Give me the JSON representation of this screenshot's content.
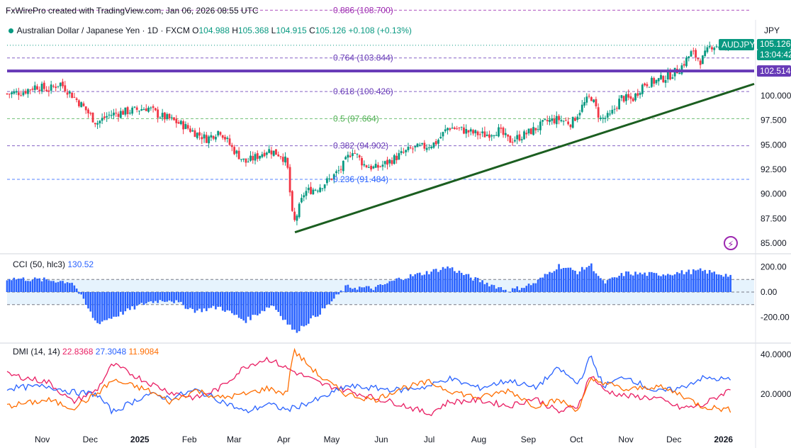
{
  "watermark": "FxWirePro created with TradingView.com, Jan 06, 2026 08:55 UTC",
  "header": {
    "symbol_name": "Australian Dollar / Japanese Yen",
    "interval": "1D",
    "exchange": "FXCM",
    "open_label": "O",
    "open": "104.988",
    "high_label": "H",
    "high": "105.368",
    "low_label": "L",
    "low": "104.915",
    "close_label": "C",
    "close": "105.126",
    "change": "+0.108",
    "change_pct": "(+0.13%)"
  },
  "currency": "JPY",
  "price_axis": {
    "ticks": [
      "100.000",
      "97.500",
      "95.000",
      "92.500",
      "90.000",
      "87.500",
      "85.000"
    ],
    "tick_values": [
      100,
      97.5,
      95,
      92.5,
      90,
      87.5,
      85
    ],
    "symbol_tag": "AUDJPY",
    "price_tag": "105.126",
    "countdown_tag": "13:04:42",
    "level_tag": "102.514",
    "level_value": 102.514,
    "colors": {
      "up": "#089981",
      "down": "#f23645",
      "level": "#673ab7"
    }
  },
  "fib_levels": [
    {
      "label": "0.886 (108.700)",
      "value": 108.7,
      "color": "#9c27b0"
    },
    {
      "label": "0.764 (103.844)",
      "value": 103.844,
      "color": "#673ab7"
    },
    {
      "label": "0.618 (100.426)",
      "value": 100.426,
      "color": "#673ab7"
    },
    {
      "label": "0.5 (97.664)",
      "value": 97.664,
      "color": "#4caf50"
    },
    {
      "label": "0.382 (94.902)",
      "value": 94.902,
      "color": "#673ab7"
    },
    {
      "label": "0.236 (91.484)",
      "value": 91.484,
      "color": "#2962ff"
    }
  ],
  "time_axis": [
    "Nov",
    "Dec",
    "2025",
    "Feb",
    "Mar",
    "Apr",
    "May",
    "Jun",
    "Jul",
    "Aug",
    "Sep",
    "Oct",
    "Nov",
    "Dec",
    "2026"
  ],
  "cci": {
    "title": "CCI (50, hlc3)",
    "value": "130.52",
    "ticks": [
      "200.00",
      "0.00",
      "-200.00"
    ],
    "tick_values": [
      200,
      0,
      -200
    ],
    "band": [
      100,
      -100
    ],
    "color": "#2962ff"
  },
  "dmi": {
    "title": "DMI (14, 14)",
    "plus_di": "22.8368",
    "minus_di": "27.3048",
    "adx": "11.9084",
    "ticks": [
      "40.0000",
      "20.0000"
    ],
    "tick_values": [
      40,
      20
    ],
    "colors": {
      "plus_di": "#e91e63",
      "minus_di": "#2962ff",
      "adx": "#ff6d00"
    }
  },
  "chart_data": {
    "type": "candlestick",
    "price_range": [
      84,
      109
    ],
    "trendline": {
      "from": [
        "Apr",
        86.1
      ],
      "to": [
        "2026",
        101.2
      ],
      "color": "#1b5e20"
    },
    "price_path": [
      [
        "2024-10-10",
        100.2
      ],
      [
        "2024-10-20",
        100.4
      ],
      [
        "2024-10-28",
        101.0
      ],
      [
        "2024-11-05",
        100.6
      ],
      [
        "2024-11-12",
        101.3
      ],
      [
        "2024-11-20",
        100.0
      ],
      [
        "2024-11-27",
        98.8
      ],
      [
        "2024-12-05",
        97.2
      ],
      [
        "2024-12-12",
        98.0
      ],
      [
        "2024-12-20",
        98.3
      ],
      [
        "2024-12-28",
        98.5
      ],
      [
        "2025-01-06",
        98.8
      ],
      [
        "2025-01-13",
        98.0
      ],
      [
        "2025-01-20",
        97.6
      ],
      [
        "2025-01-28",
        97.0
      ],
      [
        "2025-02-05",
        96.2
      ],
      [
        "2025-02-12",
        95.6
      ],
      [
        "2025-02-20",
        96.5
      ],
      [
        "2025-02-28",
        94.6
      ],
      [
        "2025-03-08",
        93.2
      ],
      [
        "2025-03-15",
        93.8
      ],
      [
        "2025-03-22",
        94.5
      ],
      [
        "2025-03-30",
        94.0
      ],
      [
        "2025-04-03",
        93.2
      ],
      [
        "2025-04-07",
        86.8
      ],
      [
        "2025-04-14",
        90.2
      ],
      [
        "2025-04-22",
        90.6
      ],
      [
        "2025-04-30",
        91.5
      ],
      [
        "2025-05-07",
        92.6
      ],
      [
        "2025-05-14",
        94.5
      ],
      [
        "2025-05-21",
        93.0
      ],
      [
        "2025-05-28",
        92.6
      ],
      [
        "2025-06-05",
        93.2
      ],
      [
        "2025-06-13",
        94.0
      ],
      [
        "2025-06-20",
        94.6
      ],
      [
        "2025-06-28",
        94.8
      ],
      [
        "2025-07-05",
        95.2
      ],
      [
        "2025-07-13",
        96.8
      ],
      [
        "2025-07-20",
        96.6
      ],
      [
        "2025-07-28",
        96.2
      ],
      [
        "2025-08-05",
        96.0
      ],
      [
        "2025-08-13",
        96.5
      ],
      [
        "2025-08-20",
        95.4
      ],
      [
        "2025-08-28",
        95.9
      ],
      [
        "2025-09-05",
        96.6
      ],
      [
        "2025-09-13",
        97.4
      ],
      [
        "2025-09-20",
        97.6
      ],
      [
        "2025-09-28",
        97.2
      ],
      [
        "2025-10-05",
        99.0
      ],
      [
        "2025-10-10",
        100.0
      ],
      [
        "2025-10-16",
        97.6
      ],
      [
        "2025-10-22",
        97.9
      ],
      [
        "2025-10-29",
        99.8
      ],
      [
        "2025-11-05",
        99.6
      ],
      [
        "2025-11-12",
        101.2
      ],
      [
        "2025-11-20",
        101.5
      ],
      [
        "2025-11-28",
        102.0
      ],
      [
        "2025-12-05",
        102.8
      ],
      [
        "2025-12-12",
        104.4
      ],
      [
        "2025-12-18",
        103.5
      ],
      [
        "2025-12-24",
        105.1
      ],
      [
        "2026-01-06",
        105.13
      ]
    ],
    "cci_path": [
      [
        "2024-10-10",
        110
      ],
      [
        "2024-11-05",
        95
      ],
      [
        "2024-11-20",
        80
      ],
      [
        "2024-12-05",
        -250
      ],
      [
        "2024-12-15",
        -200
      ],
      [
        "2025-01-06",
        -80
      ],
      [
        "2025-01-20",
        -60
      ],
      [
        "2025-02-05",
        -150
      ],
      [
        "2025-02-20",
        -120
      ],
      [
        "2025-03-08",
        -230
      ],
      [
        "2025-03-25",
        -100
      ],
      [
        "2025-04-08",
        -320
      ],
      [
        "2025-04-25",
        -150
      ],
      [
        "2025-05-10",
        40
      ],
      [
        "2025-05-28",
        30
      ],
      [
        "2025-06-13",
        110
      ],
      [
        "2025-07-01",
        160
      ],
      [
        "2025-07-13",
        200
      ],
      [
        "2025-07-28",
        110
      ],
      [
        "2025-08-20",
        10
      ],
      [
        "2025-09-05",
        70
      ],
      [
        "2025-09-20",
        210
      ],
      [
        "2025-10-02",
        160
      ],
      [
        "2025-10-10",
        220
      ],
      [
        "2025-10-18",
        70
      ],
      [
        "2025-11-01",
        150
      ],
      [
        "2025-11-20",
        140
      ],
      [
        "2025-12-05",
        155
      ],
      [
        "2025-12-18",
        170
      ],
      [
        "2026-01-06",
        130
      ]
    ],
    "dmi_series": {
      "plus_di": [
        [
          "2024-10-10",
          30
        ],
        [
          "2024-11-05",
          26
        ],
        [
          "2024-11-20",
          16
        ],
        [
          "2024-12-05",
          22
        ],
        [
          "2024-12-15",
          35
        ],
        [
          "2025-01-06",
          26
        ],
        [
          "2025-01-20",
          21
        ],
        [
          "2025-02-05",
          18
        ],
        [
          "2025-02-20",
          23
        ],
        [
          "2025-03-08",
          34
        ],
        [
          "2025-03-22",
          38
        ],
        [
          "2025-04-03",
          33
        ],
        [
          "2025-04-25",
          25
        ],
        [
          "2025-05-10",
          22
        ],
        [
          "2025-05-28",
          18
        ],
        [
          "2025-06-13",
          15
        ],
        [
          "2025-07-01",
          10
        ],
        [
          "2025-07-13",
          16
        ],
        [
          "2025-08-01",
          17
        ],
        [
          "2025-08-20",
          14
        ],
        [
          "2025-09-05",
          18
        ],
        [
          "2025-09-20",
          11
        ],
        [
          "2025-10-02",
          14
        ],
        [
          "2025-10-10",
          30
        ],
        [
          "2025-10-18",
          22
        ],
        [
          "2025-11-01",
          19
        ],
        [
          "2025-11-20",
          18
        ],
        [
          "2025-12-05",
          13
        ],
        [
          "2025-12-18",
          14
        ],
        [
          "2026-01-06",
          22.8
        ]
      ],
      "minus_di": [
        [
          "2024-10-10",
          23
        ],
        [
          "2024-11-05",
          24
        ],
        [
          "2024-11-20",
          21
        ],
        [
          "2024-12-05",
          20
        ],
        [
          "2024-12-15",
          11
        ],
        [
          "2025-01-06",
          20
        ],
        [
          "2025-01-20",
          18
        ],
        [
          "2025-02-05",
          22
        ],
        [
          "2025-02-20",
          17
        ],
        [
          "2025-03-08",
          11
        ],
        [
          "2025-03-22",
          15
        ],
        [
          "2025-04-03",
          12
        ],
        [
          "2025-04-25",
          18
        ],
        [
          "2025-05-10",
          24
        ],
        [
          "2025-05-28",
          23
        ],
        [
          "2025-06-13",
          22
        ],
        [
          "2025-07-01",
          24
        ],
        [
          "2025-07-13",
          28
        ],
        [
          "2025-08-01",
          23
        ],
        [
          "2025-08-20",
          27
        ],
        [
          "2025-09-05",
          23
        ],
        [
          "2025-09-20",
          33
        ],
        [
          "2025-10-02",
          25
        ],
        [
          "2025-10-10",
          39
        ],
        [
          "2025-10-18",
          24
        ],
        [
          "2025-11-01",
          29
        ],
        [
          "2025-11-20",
          21
        ],
        [
          "2025-12-05",
          23
        ],
        [
          "2025-12-18",
          28
        ],
        [
          "2026-01-06",
          27.3
        ]
      ],
      "adx": [
        [
          "2024-10-10",
          14
        ],
        [
          "2024-11-05",
          17
        ],
        [
          "2024-11-20",
          13
        ],
        [
          "2024-12-05",
          20
        ],
        [
          "2024-12-15",
          27
        ],
        [
          "2025-01-06",
          22
        ],
        [
          "2025-01-20",
          16
        ],
        [
          "2025-02-05",
          22
        ],
        [
          "2025-02-20",
          18
        ],
        [
          "2025-03-08",
          20
        ],
        [
          "2025-03-22",
          23
        ],
        [
          "2025-04-03",
          20
        ],
        [
          "2025-04-07",
          42
        ],
        [
          "2025-04-25",
          28
        ],
        [
          "2025-05-10",
          20
        ],
        [
          "2025-05-28",
          17
        ],
        [
          "2025-06-13",
          23
        ],
        [
          "2025-07-01",
          26
        ],
        [
          "2025-07-13",
          22
        ],
        [
          "2025-08-01",
          18
        ],
        [
          "2025-08-20",
          22
        ],
        [
          "2025-09-05",
          14
        ],
        [
          "2025-09-20",
          17
        ],
        [
          "2025-10-02",
          12
        ],
        [
          "2025-10-10",
          27
        ],
        [
          "2025-10-18",
          26
        ],
        [
          "2025-11-01",
          22
        ],
        [
          "2025-11-20",
          24
        ],
        [
          "2025-12-05",
          20
        ],
        [
          "2025-12-18",
          14
        ],
        [
          "2026-01-06",
          11.9
        ]
      ]
    }
  }
}
